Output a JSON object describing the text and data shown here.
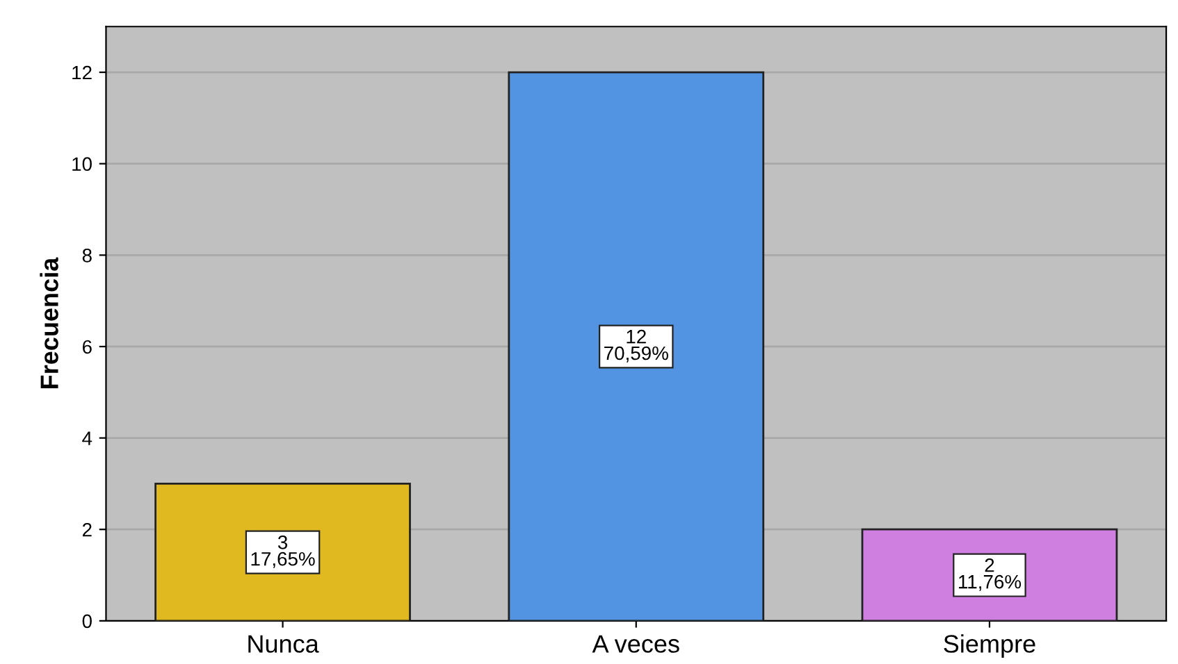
{
  "chart_data": {
    "type": "bar",
    "ylabel": "Frecuencia",
    "categories": [
      "Nunca",
      "A veces",
      "Siempre"
    ],
    "values": [
      3,
      12,
      2
    ],
    "colors": [
      "#e0b820",
      "#5294e2",
      "#cf7fe0"
    ],
    "value_labels": [
      "3\n17,65%",
      "12\n70,59%",
      "2\n11,76%"
    ],
    "ylim": [
      0,
      13
    ],
    "yticks": [
      0,
      2,
      4,
      6,
      8,
      10,
      12
    ],
    "grid": "y"
  }
}
